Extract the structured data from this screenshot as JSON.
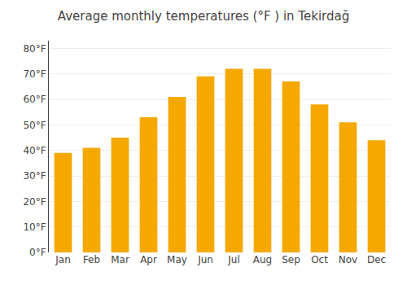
{
  "chart_data": {
    "type": "bar",
    "title": "Average monthly temperatures (°F ) in Tekirdağ",
    "categories": [
      "Jan",
      "Feb",
      "Mar",
      "Apr",
      "May",
      "Jun",
      "Jul",
      "Aug",
      "Sep",
      "Oct",
      "Nov",
      "Dec"
    ],
    "values": [
      39,
      41,
      45,
      53,
      61,
      69,
      72,
      72,
      67,
      58,
      51,
      44
    ],
    "color": "#F5A800",
    "ylim": [
      0,
      83
    ],
    "yticks": [
      {
        "value": 0,
        "label": "0°F"
      },
      {
        "value": 10,
        "label": "10°F"
      },
      {
        "value": 20,
        "label": "20°F"
      },
      {
        "value": 30,
        "label": "30°F"
      },
      {
        "value": 40,
        "label": "40°F"
      },
      {
        "value": 50,
        "label": "50°F"
      },
      {
        "value": 60,
        "label": "60°F"
      },
      {
        "value": 70,
        "label": "70°F"
      },
      {
        "value": 80,
        "label": "80°F"
      }
    ],
    "grid": true
  }
}
